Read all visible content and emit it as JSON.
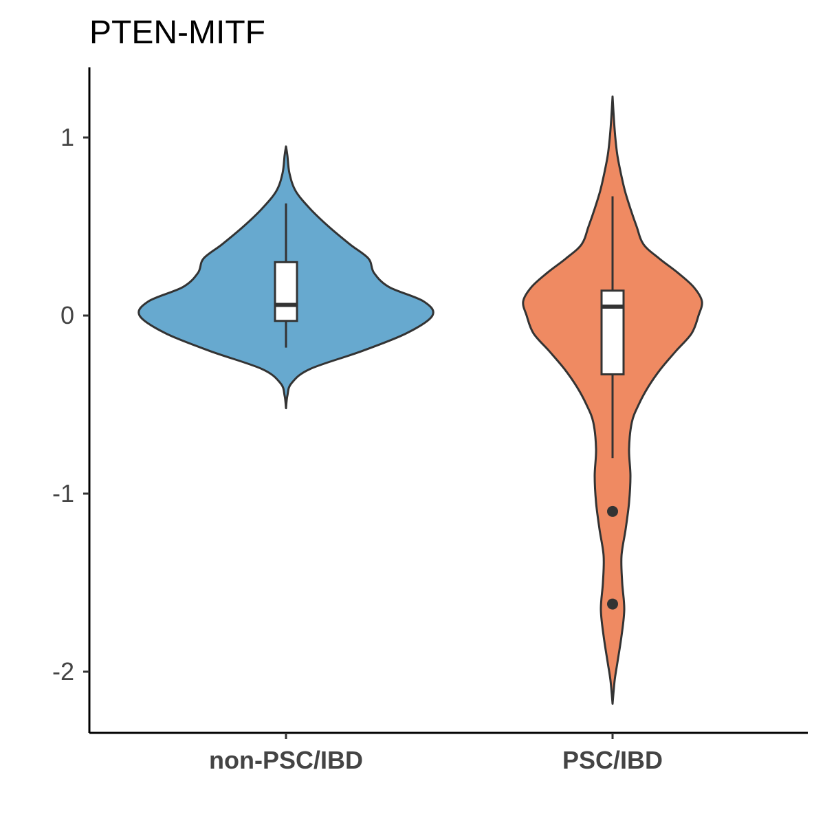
{
  "chart_data": {
    "type": "violin",
    "title": "PTEN-MITF",
    "xlabel": "",
    "ylabel": "",
    "ylim": [
      -2.3,
      1.4
    ],
    "yticks": [
      1,
      0,
      -1,
      -2
    ],
    "ytick_labels": [
      "1",
      "0",
      "-1",
      "-2"
    ],
    "categories": [
      "non-PSC/IBD",
      "PSC/IBD"
    ],
    "grid": false,
    "legend": "none",
    "groups": [
      {
        "category": "non-PSC/IBD",
        "color": "#67A9CF",
        "density": [
          [
            -0.52,
            0.0
          ],
          [
            -0.45,
            2
          ],
          [
            -0.38,
            8
          ],
          [
            -0.3,
            35
          ],
          [
            -0.2,
            110
          ],
          [
            -0.1,
            175
          ],
          [
            0.0,
            213
          ],
          [
            0.08,
            200
          ],
          [
            0.16,
            150
          ],
          [
            0.24,
            128
          ],
          [
            0.32,
            120
          ],
          [
            0.4,
            93
          ],
          [
            0.5,
            62
          ],
          [
            0.6,
            35
          ],
          [
            0.7,
            14
          ],
          [
            0.8,
            5
          ],
          [
            0.9,
            2
          ],
          [
            0.95,
            0.0
          ]
        ],
        "box": {
          "whisker_low": -0.18,
          "q1": -0.03,
          "median": 0.06,
          "q3": 0.3,
          "whisker_high": 0.63
        },
        "outliers": []
      },
      {
        "category": "PSC/IBD",
        "color": "#EF8A62",
        "density": [
          [
            -2.18,
            0.0
          ],
          [
            -2.05,
            3
          ],
          [
            -1.95,
            7
          ],
          [
            -1.8,
            13
          ],
          [
            -1.65,
            17
          ],
          [
            -1.5,
            14
          ],
          [
            -1.35,
            13
          ],
          [
            -1.2,
            19
          ],
          [
            -1.05,
            24
          ],
          [
            -0.9,
            26
          ],
          [
            -0.75,
            24
          ],
          [
            -0.6,
            28
          ],
          [
            -0.5,
            38
          ],
          [
            -0.4,
            52
          ],
          [
            -0.3,
            70
          ],
          [
            -0.2,
            92
          ],
          [
            -0.1,
            115
          ],
          [
            0.0,
            125
          ],
          [
            0.08,
            130
          ],
          [
            0.16,
            118
          ],
          [
            0.24,
            95
          ],
          [
            0.32,
            68
          ],
          [
            0.4,
            45
          ],
          [
            0.5,
            35
          ],
          [
            0.6,
            26
          ],
          [
            0.7,
            18
          ],
          [
            0.8,
            12
          ],
          [
            0.9,
            7
          ],
          [
            1.0,
            4
          ],
          [
            1.1,
            2
          ],
          [
            1.23,
            0.0
          ]
        ],
        "box": {
          "whisker_low": -0.8,
          "q1": -0.33,
          "median": 0.05,
          "q3": 0.14,
          "whisker_high": 0.67
        },
        "outliers": [
          -1.1,
          -1.62
        ]
      }
    ]
  }
}
